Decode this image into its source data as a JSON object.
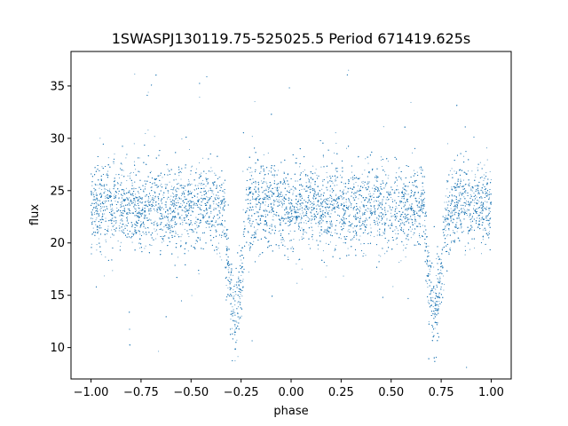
{
  "chart_data": {
    "type": "scatter",
    "title": "1SWASPJ130119.75-525025.5 Period 671419.625s",
    "xlabel": "phase",
    "ylabel": "flux",
    "xlim": [
      -1.1,
      1.1
    ],
    "ylim": [
      7,
      38.3
    ],
    "xticks": [
      -1.0,
      -0.75,
      -0.5,
      -0.25,
      0.0,
      0.25,
      0.5,
      0.75,
      1.0
    ],
    "xtick_labels": [
      "−1.00",
      "−0.75",
      "−0.50",
      "−0.25",
      "0.00",
      "0.25",
      "0.50",
      "0.75",
      "1.00"
    ],
    "yticks": [
      10,
      15,
      20,
      25,
      30,
      35
    ],
    "ytick_labels": [
      "10",
      "15",
      "20",
      "25",
      "30",
      "35"
    ],
    "grid": false,
    "point_color": "#1f77b4",
    "baseline_flux": 23.5,
    "baseline_scatter": 2.0,
    "eclipses": [
      {
        "phase": -0.28,
        "min_flux": 13.5
      },
      {
        "phase": 0.72,
        "min_flux": 13.5
      }
    ],
    "sample_points": [
      {
        "x": -0.98,
        "y": 24.1
      },
      {
        "x": -0.9,
        "y": 23.2
      },
      {
        "x": -0.8,
        "y": 24.6
      },
      {
        "x": -0.65,
        "y": 22.8
      },
      {
        "x": -0.5,
        "y": 23.9
      },
      {
        "x": -0.4,
        "y": 23.0
      },
      {
        "x": -0.3,
        "y": 14.2
      },
      {
        "x": -0.28,
        "y": 13.1
      },
      {
        "x": -0.25,
        "y": 15.5
      },
      {
        "x": -0.1,
        "y": 23.7
      },
      {
        "x": 0.0,
        "y": 23.1
      },
      {
        "x": 0.15,
        "y": 24.2
      },
      {
        "x": 0.3,
        "y": 23.4
      },
      {
        "x": 0.45,
        "y": 22.9
      },
      {
        "x": 0.55,
        "y": 24.0
      },
      {
        "x": 0.7,
        "y": 14.0
      },
      {
        "x": 0.72,
        "y": 13.2
      },
      {
        "x": 0.75,
        "y": 15.8
      },
      {
        "x": 0.85,
        "y": 23.6
      },
      {
        "x": 0.98,
        "y": 23.9
      }
    ]
  }
}
